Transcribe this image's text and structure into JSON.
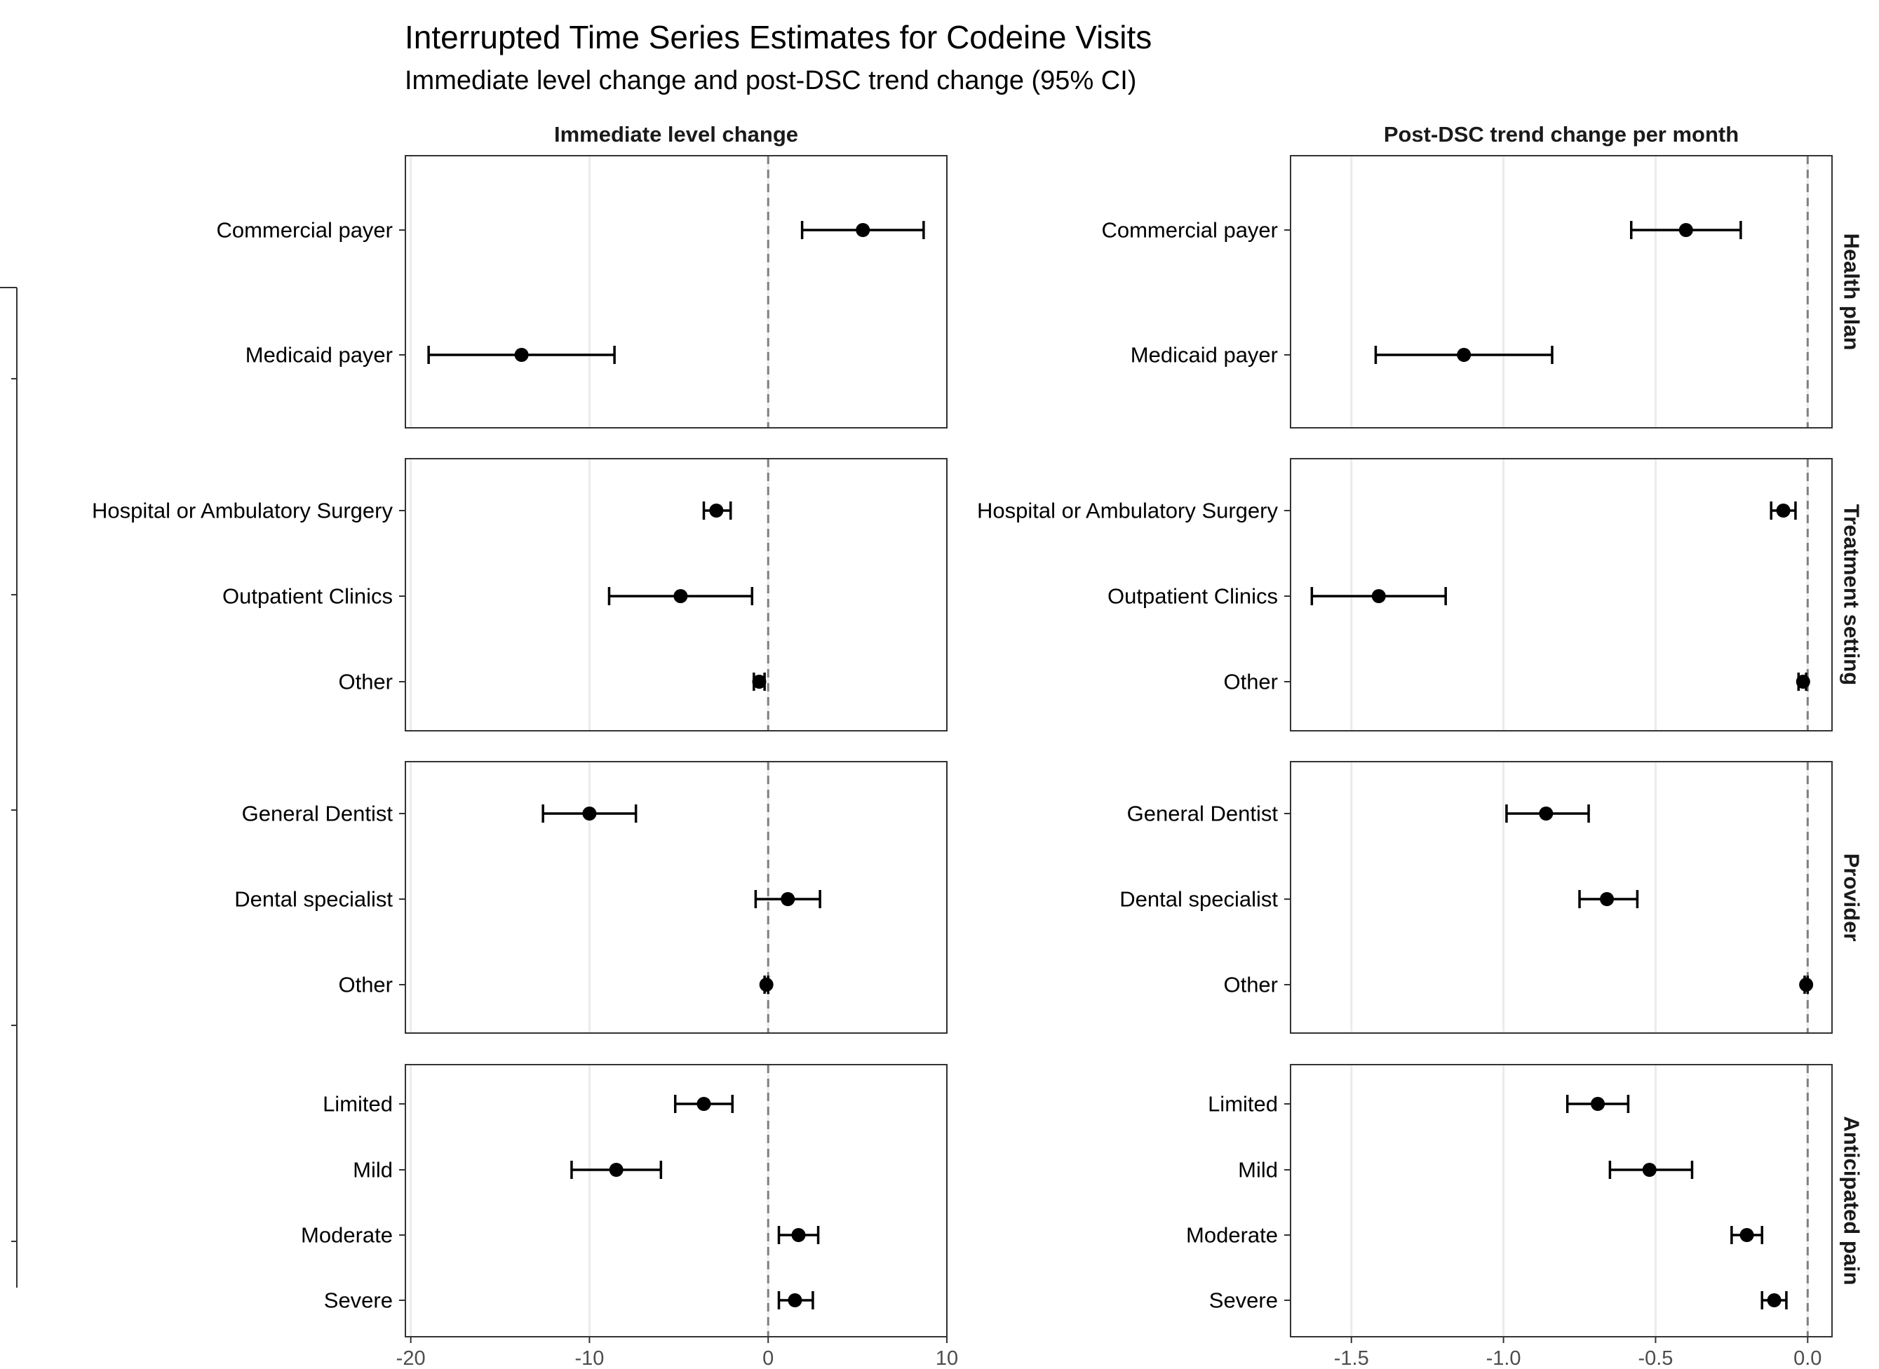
{
  "title": "Interrupted Time Series Estimates for Codeine Visits",
  "subtitle": "Immediate level change and post-DSC trend change (95% CI)",
  "chart_data": {
    "type": "scatter",
    "subtype": "forest-plot-faceted",
    "columns": [
      {
        "label": "Immediate level change",
        "xlim": [
          -20.3,
          10.0
        ],
        "ticks": [
          -20,
          -10,
          0,
          10
        ],
        "reference_line": 0
      },
      {
        "label": "Post-DSC trend change per month",
        "xlim": [
          -1.7,
          0.08
        ],
        "ticks": [
          -1.5,
          -1.0,
          -0.5,
          0.0
        ],
        "tick_labels": [
          "-1.5",
          "-1.0",
          "-0.5",
          "0.0"
        ],
        "reference_line": 0
      }
    ],
    "groups": [
      {
        "label": "Health plan",
        "rows": [
          {
            "label": "Commercial payer",
            "level": {
              "est": 5.3,
              "lo": 1.9,
              "hi": 8.7
            },
            "trend": {
              "est": -0.4,
              "lo": -0.58,
              "hi": -0.22
            }
          },
          {
            "label": "Medicaid payer",
            "level": {
              "est": -13.8,
              "lo": -19.0,
              "hi": -8.6
            },
            "trend": {
              "est": -1.13,
              "lo": -1.42,
              "hi": -0.84
            }
          }
        ]
      },
      {
        "label": "Treatment setting",
        "rows": [
          {
            "label": "Hospital or Ambulatory Surgery",
            "level": {
              "est": -2.9,
              "lo": -3.6,
              "hi": -2.1
            },
            "trend": {
              "est": -0.08,
              "lo": -0.12,
              "hi": -0.04
            }
          },
          {
            "label": "Outpatient Clinics",
            "level": {
              "est": -4.9,
              "lo": -8.9,
              "hi": -0.9
            },
            "trend": {
              "est": -1.41,
              "lo": -1.63,
              "hi": -1.19
            }
          },
          {
            "label": "Other",
            "level": {
              "est": -0.5,
              "lo": -0.8,
              "hi": -0.2
            },
            "trend": {
              "est": -0.015,
              "lo": -0.03,
              "hi": -0.005
            }
          }
        ]
      },
      {
        "label": "Provider",
        "rows": [
          {
            "label": "General Dentist",
            "level": {
              "est": -10.0,
              "lo": -12.6,
              "hi": -7.4
            },
            "trend": {
              "est": -0.86,
              "lo": -0.99,
              "hi": -0.72
            }
          },
          {
            "label": "Dental specialist",
            "level": {
              "est": 1.1,
              "lo": -0.7,
              "hi": 2.9
            },
            "trend": {
              "est": -0.66,
              "lo": -0.75,
              "hi": -0.56
            }
          },
          {
            "label": "Other",
            "level": {
              "est": -0.1,
              "lo": -0.2,
              "hi": 0.0
            },
            "trend": {
              "est": -0.005,
              "lo": -0.01,
              "hi": 0.0
            }
          }
        ]
      },
      {
        "label": "Anticipated pain",
        "rows": [
          {
            "label": "Limited",
            "level": {
              "est": -3.6,
              "lo": -5.2,
              "hi": -2.0
            },
            "trend": {
              "est": -0.69,
              "lo": -0.79,
              "hi": -0.59
            }
          },
          {
            "label": "Mild",
            "level": {
              "est": -8.5,
              "lo": -11.0,
              "hi": -6.0
            },
            "trend": {
              "est": -0.52,
              "lo": -0.65,
              "hi": -0.38
            }
          },
          {
            "label": "Moderate",
            "level": {
              "est": 1.7,
              "lo": 0.6,
              "hi": 2.8
            },
            "trend": {
              "est": -0.2,
              "lo": -0.25,
              "hi": -0.15
            }
          },
          {
            "label": "Severe",
            "level": {
              "est": 1.5,
              "lo": 0.6,
              "hi": 2.5
            },
            "trend": {
              "est": -0.11,
              "lo": -0.15,
              "hi": -0.07
            }
          }
        ]
      }
    ],
    "grid": true,
    "colors": {
      "point": "#000000",
      "reference_line": "#808080",
      "gridline": "#ebebeb",
      "panel_border": "#333333"
    }
  }
}
